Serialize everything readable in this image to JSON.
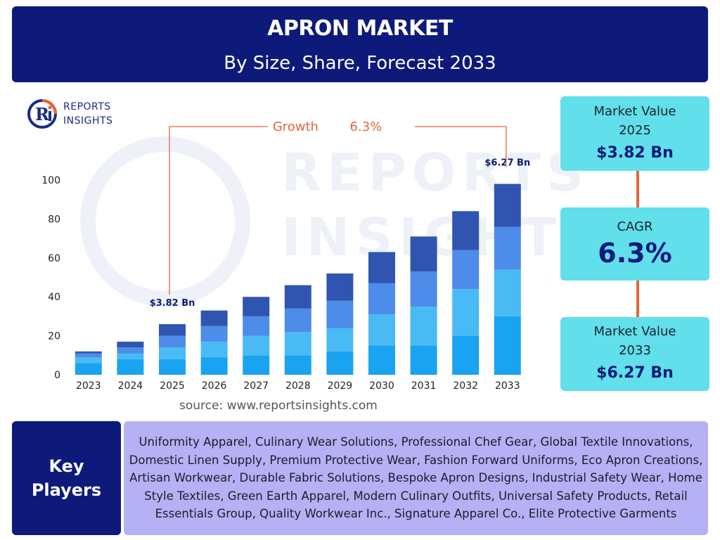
{
  "header": {
    "title": "APRON MARKET",
    "subtitle": "By Size, Share, Forecast 2033"
  },
  "logo": {
    "line1": "REPORTS",
    "line2": "INSIGHTS"
  },
  "watermark": {
    "line1": "REPORTS",
    "line2": "INSIGHTS"
  },
  "source": "source: www.reportsinsights.com",
  "cards": {
    "market_2025": {
      "label_line1": "Market Value",
      "label_line2": "2025",
      "value": "$3.82 Bn"
    },
    "cagr": {
      "label": "CAGR",
      "value": "6.3%"
    },
    "market_2033": {
      "label_line1": "Market Value",
      "label_line2": "2033",
      "value": "$6.27 Bn"
    }
  },
  "key_players": {
    "title": "Key Players",
    "list": "Uniformity Apparel, Culinary Wear Solutions, Professional Chef Gear, Global Textile Innovations, Domestic Linen Supply, Premium Protective Wear, Fashion Forward Uniforms, Eco Apron Creations, Artisan Workwear, Durable Fabric Solutions, Bespoke Apron Designs, Industrial Safety Wear, Home Style Textiles, Green Earth Apparel, Modern Culinary Outfits, Universal Safety Products, Retail Essentials Group, Quality Workwear Inc., Signature Apparel Co., Elite Protective Garments"
  },
  "colors": {
    "navy": "#0d1a7a",
    "cyan": "#61dfea",
    "lavender": "#b5b1f4",
    "accent": "#e0683a",
    "stack": [
      "#1aa3f0",
      "#49baf4",
      "#4d8ce8",
      "#2f55b0"
    ]
  },
  "chart_data": {
    "type": "bar",
    "stacked": true,
    "categories": [
      "2023",
      "2024",
      "2025",
      "2026",
      "2027",
      "2028",
      "2029",
      "2030",
      "2031",
      "2032",
      "2033"
    ],
    "series": [
      {
        "values": [
          6,
          8,
          8,
          9,
          10,
          10,
          12,
          15,
          15,
          20,
          30
        ]
      },
      {
        "values": [
          3,
          3,
          6,
          8,
          10,
          12,
          12,
          16,
          20,
          24,
          24
        ]
      },
      {
        "values": [
          2,
          3,
          6,
          8,
          10,
          12,
          14,
          16,
          18,
          20,
          22
        ]
      },
      {
        "values": [
          1,
          3,
          6,
          8,
          10,
          12,
          14,
          16,
          18,
          20,
          22
        ]
      }
    ],
    "ylim": [
      0,
      100
    ],
    "yticks": [
      0,
      20,
      40,
      60,
      80,
      100
    ],
    "annotations": [
      {
        "category": "2025",
        "text": "$3.82 Bn"
      },
      {
        "category": "2033",
        "text": "$6.27 Bn"
      }
    ],
    "growth_label": "Growth",
    "growth_value": "6.3%",
    "grid": false
  }
}
